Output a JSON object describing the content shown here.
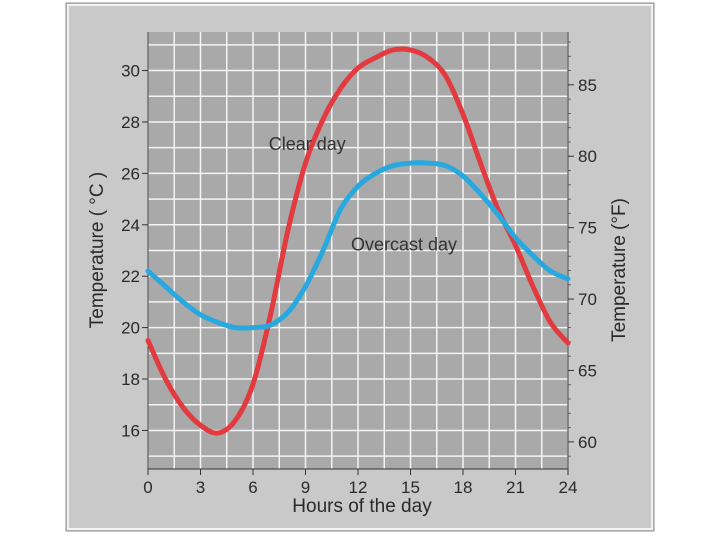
{
  "chart_data": {
    "type": "line",
    "xlabel": "Hours of the day",
    "ylabel": "Temperature ( °C )",
    "y2label": "Temperature (°F)",
    "xlim": [
      0,
      24
    ],
    "ylim": [
      14.5,
      31.5
    ],
    "x_ticks": [
      "0",
      "3",
      "6",
      "9",
      "12",
      "15",
      "18",
      "21",
      "24"
    ],
    "y_ticks": [
      "16",
      "18",
      "20",
      "22",
      "24",
      "26",
      "28",
      "30"
    ],
    "y2_ticks": [
      "60",
      "65",
      "70",
      "75",
      "80",
      "85"
    ],
    "grid": true,
    "annotations": [
      {
        "text": "Clear day",
        "x": 6.9,
        "y": 26.9
      },
      {
        "text": "Overcast day",
        "x": 11.6,
        "y": 23.0
      }
    ],
    "series": [
      {
        "name": "Clear day",
        "color": "#e23a3f",
        "points": [
          [
            0,
            19.5
          ],
          [
            1,
            18.0
          ],
          [
            2,
            16.9
          ],
          [
            3,
            16.2
          ],
          [
            4,
            15.9
          ],
          [
            5,
            16.4
          ],
          [
            6,
            17.8
          ],
          [
            7,
            20.5
          ],
          [
            8,
            23.8
          ],
          [
            9,
            26.4
          ],
          [
            10,
            28.1
          ],
          [
            11,
            29.3
          ],
          [
            12,
            30.1
          ],
          [
            13,
            30.5
          ],
          [
            14,
            30.8
          ],
          [
            15,
            30.8
          ],
          [
            16,
            30.5
          ],
          [
            17,
            29.8
          ],
          [
            18,
            28.3
          ],
          [
            19,
            26.4
          ],
          [
            20,
            24.6
          ],
          [
            21,
            23.2
          ],
          [
            22,
            21.6
          ],
          [
            23,
            20.2
          ],
          [
            24,
            19.4
          ]
        ]
      },
      {
        "name": "Overcast day",
        "color": "#27a9df",
        "points": [
          [
            0,
            22.2
          ],
          [
            1,
            21.6
          ],
          [
            2,
            21.0
          ],
          [
            3,
            20.5
          ],
          [
            4,
            20.2
          ],
          [
            5,
            20.0
          ],
          [
            6,
            20.0
          ],
          [
            7,
            20.1
          ],
          [
            8,
            20.6
          ],
          [
            9,
            21.6
          ],
          [
            10,
            23.0
          ],
          [
            11,
            24.6
          ],
          [
            12,
            25.5
          ],
          [
            13,
            26.0
          ],
          [
            14,
            26.3
          ],
          [
            15,
            26.4
          ],
          [
            16,
            26.4
          ],
          [
            17,
            26.3
          ],
          [
            18,
            25.9
          ],
          [
            19,
            25.2
          ],
          [
            20,
            24.4
          ],
          [
            21,
            23.5
          ],
          [
            22,
            22.8
          ],
          [
            23,
            22.2
          ],
          [
            24,
            21.9
          ]
        ]
      }
    ]
  }
}
